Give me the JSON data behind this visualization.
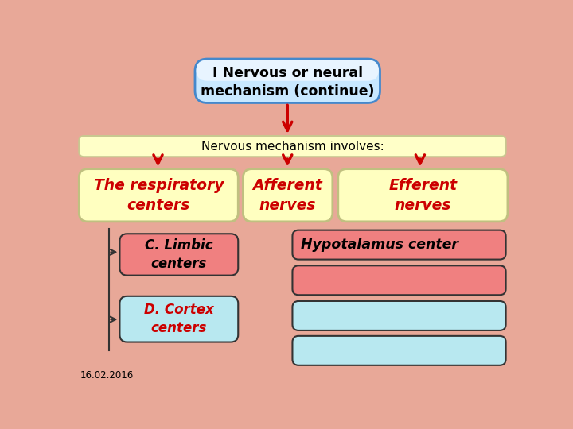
{
  "title": "I Nervous or neural\nmechanism (continue)",
  "title_bg_top": "#b8d8f8",
  "title_bg": "#82b8f0",
  "title_border": "#4488cc",
  "involves_text": "Nervous mechanism involves:",
  "involves_bg": "#ffffc8",
  "involves_border": "#c8c890",
  "box1_text": "The respiratory\ncenters",
  "box1_bg": "#ffffc0",
  "box1_border": "#c0c080",
  "box2_text": "Afferent\nnerves",
  "box2_bg": "#ffffc0",
  "box2_border": "#c0c080",
  "box3_text": "Efferent\nnerves",
  "box3_bg": "#ffffc0",
  "box3_border": "#c0c080",
  "limbic_text": "C. Limbic\ncenters",
  "limbic_bg": "#f08080",
  "limbic_border": "#333333",
  "cortex_text": "D. Cortex\ncenters",
  "cortex_bg": "#b8e8f0",
  "cortex_border": "#333333",
  "hypo_text": "Hypotalamus center",
  "hypo_bg": "#f08080",
  "hypo_border": "#333333",
  "right_box2_bg": "#f08080",
  "right_box2_border": "#333333",
  "right_box3_bg": "#b8e8f0",
  "right_box3_border": "#333333",
  "right_box4_bg": "#b8e8f0",
  "right_box4_border": "#333333",
  "arrow_color": "#cc0000",
  "line_color": "#333333",
  "text_color_red": "#cc0000",
  "text_color_black": "#000000",
  "date_text": "16.02.2016",
  "bg_color": "#e8a898"
}
